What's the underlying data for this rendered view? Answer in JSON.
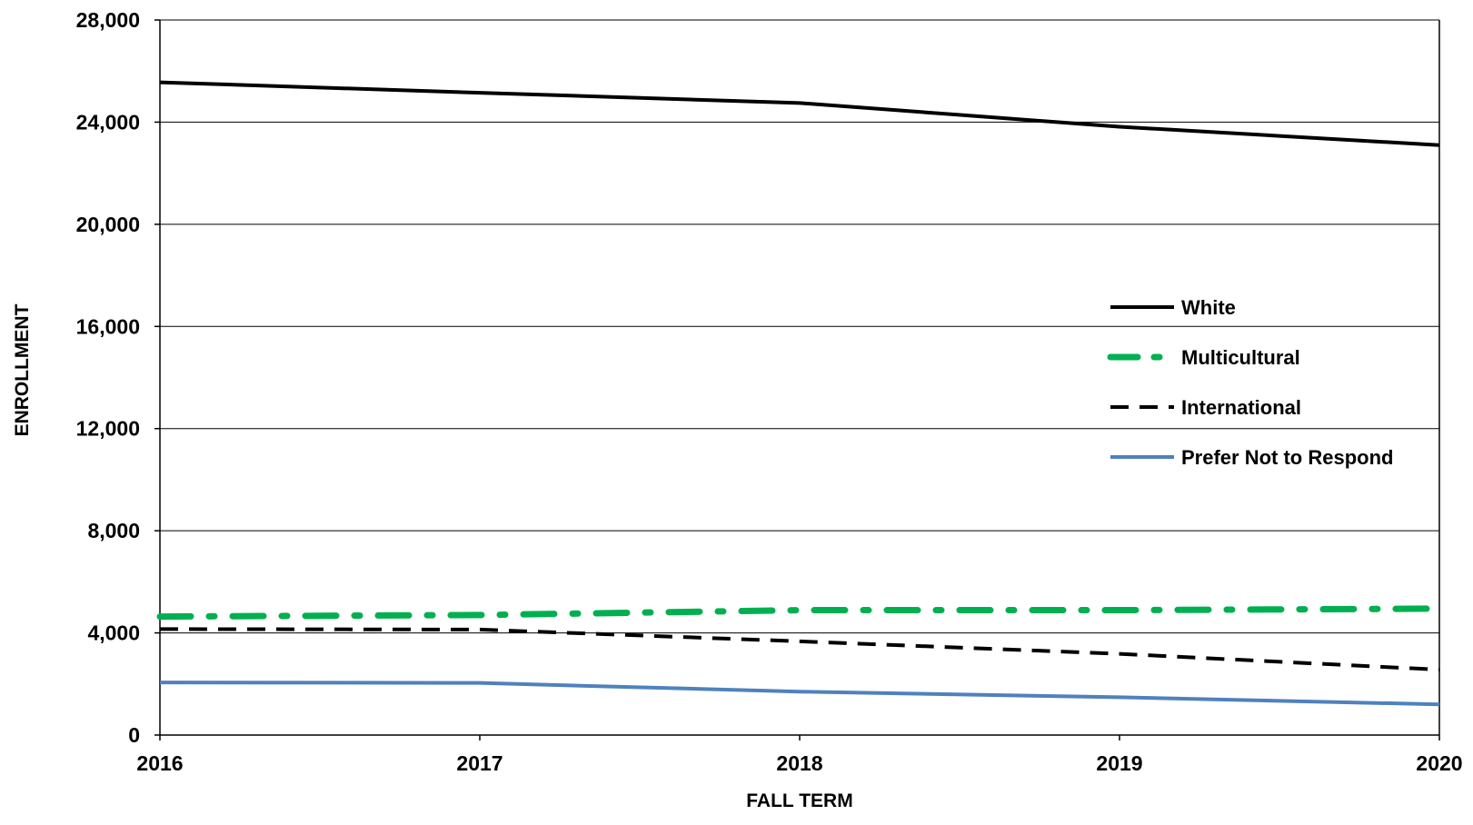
{
  "chart_data": {
    "type": "line",
    "title": "",
    "xlabel": "FALL TERM",
    "ylabel": "ENROLLMENT",
    "categories": [
      "2016",
      "2017",
      "2018",
      "2019",
      "2020"
    ],
    "ylim": [
      0,
      28000
    ],
    "yticks": [
      0,
      4000,
      8000,
      12000,
      16000,
      20000,
      24000,
      28000
    ],
    "ytick_labels": [
      "0",
      "4,000",
      "8,000",
      "12,000",
      "16,000",
      "20,000",
      "24,000",
      "28,000"
    ],
    "grid": "horizontal",
    "legend_position": "right",
    "series": [
      {
        "name": "White",
        "values": [
          25560,
          25150,
          24750,
          23820,
          23100
        ],
        "color": "#000000",
        "style": "solid"
      },
      {
        "name": "Multicultural",
        "values": [
          4640,
          4700,
          4890,
          4890,
          4950
        ],
        "color": "#00B050",
        "style": "dash-dot"
      },
      {
        "name": "International",
        "values": [
          4150,
          4130,
          3670,
          3180,
          2560
        ],
        "color": "#000000",
        "style": "dashed"
      },
      {
        "name": "Prefer Not to Respond",
        "values": [
          2060,
          2040,
          1700,
          1480,
          1200
        ],
        "color": "#4F81BD",
        "style": "solid"
      }
    ]
  }
}
